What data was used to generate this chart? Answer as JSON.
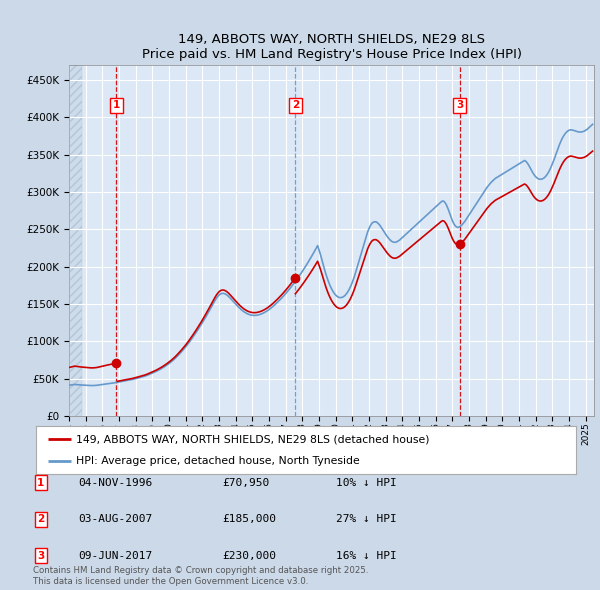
{
  "title": "149, ABBOTS WAY, NORTH SHIELDS, NE29 8LS",
  "subtitle": "Price paid vs. HM Land Registry's House Price Index (HPI)",
  "ytick_values": [
    0,
    50000,
    100000,
    150000,
    200000,
    250000,
    300000,
    350000,
    400000,
    450000
  ],
  "ylim": [
    0,
    470000
  ],
  "xlim_start": 1994.0,
  "xlim_end": 2025.5,
  "background_color": "#ccd9e8",
  "plot_bg_color": "#dce8f5",
  "hpi_color": "#6699cc",
  "sale_color": "#cc0000",
  "grid_color": "#ffffff",
  "sale_events": [
    {
      "date_num": 1996.84,
      "price": 70950,
      "label": "1",
      "vline_style": "--",
      "vline_color": "#cc0000"
    },
    {
      "date_num": 2007.58,
      "price": 185000,
      "label": "2",
      "vline_style": "--",
      "vline_color": "#6699cc"
    },
    {
      "date_num": 2017.43,
      "price": 230000,
      "label": "3",
      "vline_style": "--",
      "vline_color": "#cc0000"
    }
  ],
  "legend_entries": [
    "149, ABBOTS WAY, NORTH SHIELDS, NE29 8LS (detached house)",
    "HPI: Average price, detached house, North Tyneside"
  ],
  "table_rows": [
    {
      "num": "1",
      "date": "04-NOV-1996",
      "price": "£70,950",
      "note": "10% ↓ HPI"
    },
    {
      "num": "2",
      "date": "03-AUG-2007",
      "price": "£185,000",
      "note": "27% ↓ HPI"
    },
    {
      "num": "3",
      "date": "09-JUN-2017",
      "price": "£230,000",
      "note": "16% ↓ HPI"
    }
  ],
  "footer": "Contains HM Land Registry data © Crown copyright and database right 2025.\nThis data is licensed under the Open Government Licence v3.0.",
  "hpi_years_monthly": true,
  "hpi_data_monthly": {
    "start_year": 1994.0,
    "step": 0.08333,
    "values": [
      72000,
      72500,
      73000,
      73500,
      74000,
      73800,
      73500,
      73200,
      72900,
      72700,
      72500,
      72300,
      72100,
      71900,
      71700,
      71500,
      71400,
      71400,
      71500,
      71700,
      72000,
      72400,
      72900,
      73400,
      73900,
      74400,
      74900,
      75400,
      75800,
      76200,
      76600,
      77000,
      77500,
      78100,
      78700,
      79300,
      79900,
      80500,
      81100,
      81700,
      82300,
      82900,
      83500,
      84100,
      84700,
      85300,
      86000,
      86800,
      87600,
      88500,
      89400,
      90300,
      91200,
      92100,
      93000,
      94000,
      95200,
      96500,
      97900,
      99300,
      100700,
      102100,
      103500,
      105000,
      106700,
      108500,
      110300,
      112200,
      114200,
      116300,
      118500,
      120800,
      123200,
      125700,
      128300,
      131100,
      134000,
      137100,
      140400,
      143800,
      147300,
      150900,
      154600,
      158400,
      162300,
      166400,
      170700,
      175100,
      179600,
      184200,
      188900,
      193700,
      198600,
      203600,
      208700,
      213900,
      219200,
      224600,
      230100,
      235700,
      241400,
      247200,
      253100,
      259100,
      265200,
      270500,
      275800,
      280200,
      283800,
      286400,
      287800,
      288000,
      287200,
      285600,
      283300,
      280400,
      277100,
      273600,
      270000,
      266400,
      262800,
      259300,
      255900,
      252700,
      249700,
      247000,
      244600,
      242500,
      240700,
      239200,
      238000,
      237100,
      236500,
      236200,
      236200,
      236500,
      237100,
      237900,
      239000,
      240300,
      241800,
      243500,
      245400,
      247500,
      249800,
      252300,
      254900,
      257700,
      260600,
      263600,
      266700,
      269900,
      273200,
      276600,
      280100,
      283700,
      287400,
      291200,
      295100,
      299100,
      303200,
      307400,
      311700,
      316100,
      320600,
      325200,
      329900,
      334700,
      339600,
      344600,
      349700,
      354900,
      360200,
      365600,
      371100,
      376700,
      382400,
      388200,
      394100,
      400100,
      390000,
      380000,
      368000,
      356000,
      344000,
      333000,
      323000,
      314000,
      306000,
      299000,
      293000,
      288000,
      284000,
      281000,
      279000,
      278000,
      278000,
      279000,
      281000,
      284000,
      288000,
      293000,
      299000,
      306000,
      314000,
      323000,
      333000,
      344000,
      355000,
      366000,
      377000,
      388000,
      399000,
      410000,
      421000,
      432000,
      440000,
      447000,
      452000,
      455000,
      456000,
      456000,
      454000,
      451000,
      447000,
      442000,
      437000,
      432000,
      427000,
      422000,
      418000,
      414000,
      411000,
      409000,
      408000,
      408000,
      409000,
      411000,
      413000,
      416000,
      419000,
      422000,
      425000,
      428000,
      431000,
      434000,
      437000,
      440000,
      443000,
      446000,
      449000,
      452000,
      455000,
      458000,
      461000,
      464000,
      467000,
      470000,
      473000,
      476000,
      479000,
      482000,
      485000,
      488000,
      491000,
      494000,
      497000,
      500000,
      503000,
      505000,
      504000,
      500000,
      494000,
      486000,
      477000,
      468000,
      459000,
      452000,
      447000,
      444000,
      443000,
      444000,
      446000,
      449000,
      453000,
      457000,
      462000,
      467000,
      472000,
      477000,
      482000,
      487000,
      492000,
      497000,
      502000,
      507000,
      512000,
      517000,
      522000,
      527000,
      532000,
      537000,
      541000,
      545000,
      549000,
      552000,
      555000,
      558000,
      560000,
      562000,
      564000,
      566000,
      568000,
      570000,
      572000,
      574000,
      576000,
      578000,
      580000,
      582000,
      584000,
      586000,
      588000,
      590000,
      592000,
      594000,
      596000,
      598000,
      600000,
      598000,
      594000,
      589000,
      583000,
      577000,
      571000,
      566000,
      562000,
      559000,
      557000,
      556000,
      556000,
      557000,
      559000,
      562000,
      566000,
      571000,
      577000,
      584000,
      592000,
      600000,
      609000,
      618000,
      627000,
      636000,
      644000,
      651000,
      657000,
      662000,
      666000,
      669000,
      671000,
      672000,
      672000,
      671000,
      670000,
      669000,
      668000,
      667000,
      667000,
      667000,
      668000,
      669000,
      671000,
      673000,
      676000,
      679000,
      682000,
      685000
    ]
  },
  "hpi_scale_factor": 0.57
}
